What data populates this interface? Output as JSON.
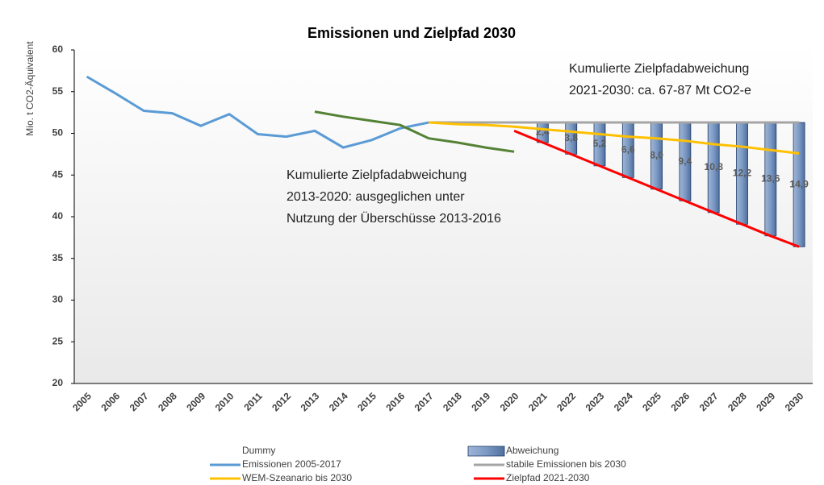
{
  "chart_data": {
    "type": "line",
    "title": "Emissionen und Zielpfad 2030",
    "y_label": "Mio. t CO2-Äquivalent",
    "categories": [
      "2005",
      "2006",
      "2007",
      "2008",
      "2009",
      "2010",
      "2011",
      "2012",
      "2013",
      "2014",
      "2015",
      "2016",
      "2017",
      "2018",
      "2019",
      "2020",
      "2021",
      "2022",
      "2023",
      "2024",
      "2025",
      "2026",
      "2027",
      "2028",
      "2029",
      "2030"
    ],
    "ylim": [
      20,
      60
    ],
    "yticks": [
      20,
      25,
      30,
      35,
      40,
      45,
      50,
      55,
      60
    ],
    "annotations": [
      {
        "lines": [
          "Kumulierte Zielpfadabweichung",
          "2021-2030: ca. 67-87 Mt CO2-e"
        ]
      },
      {
        "lines": [
          "Kumulierte Zielpfadabweichung",
          "2013-2020: ausgeglichen unter",
          "Nutzung der Überschüsse 2013-2016"
        ]
      }
    ],
    "series": [
      {
        "name": "Dummy",
        "values": [
          null,
          null,
          null,
          null,
          null,
          null,
          null,
          null,
          null,
          null,
          null,
          null,
          null,
          null,
          null,
          null,
          null,
          null,
          null,
          null,
          null,
          null,
          null,
          null,
          null,
          null
        ]
      },
      {
        "name": "Abweichung",
        "type": "bar",
        "color": "#6f8dbb",
        "values": [
          null,
          null,
          null,
          null,
          null,
          null,
          null,
          null,
          null,
          null,
          null,
          null,
          null,
          null,
          null,
          null,
          2.4,
          3.8,
          5.2,
          6.6,
          8.0,
          9.4,
          10.8,
          12.2,
          13.6,
          14.9
        ],
        "value_labels": [
          null,
          null,
          null,
          null,
          null,
          null,
          null,
          null,
          null,
          null,
          null,
          null,
          null,
          null,
          null,
          null,
          "2,4",
          "3,8",
          "5,2",
          "6,6",
          "8,0",
          "9,4",
          "10,8",
          "12,2",
          "13,6",
          "14,9"
        ]
      },
      {
        "name": "Emissionen 2005-2017",
        "color": "#5b9bd5",
        "values": [
          56.8,
          54.8,
          52.7,
          52.4,
          50.9,
          52.3,
          49.9,
          49.6,
          50.3,
          48.3,
          49.2,
          50.6,
          51.3,
          null,
          null,
          null,
          null,
          null,
          null,
          null,
          null,
          null,
          null,
          null,
          null,
          null
        ]
      },
      {
        "name": "stabile Emissionen bis 2030",
        "color": "#a5a5a5",
        "values": [
          null,
          null,
          null,
          null,
          null,
          null,
          null,
          null,
          null,
          null,
          null,
          null,
          51.3,
          51.3,
          51.3,
          51.3,
          51.3,
          51.3,
          51.3,
          51.3,
          51.3,
          51.3,
          51.3,
          51.3,
          51.3,
          51.3
        ]
      },
      {
        "name": "WEM-Szeanario bis 2030",
        "color": "#ffc000",
        "values": [
          null,
          null,
          null,
          null,
          null,
          null,
          null,
          null,
          null,
          null,
          null,
          null,
          51.3,
          51.1,
          51.0,
          50.8,
          50.5,
          50.2,
          49.9,
          49.6,
          49.4,
          49.1,
          48.7,
          48.4,
          48.0,
          47.6
        ]
      },
      {
        "name": "Zielpfad 2021-2030",
        "color": "#ff0000",
        "values": [
          null,
          null,
          null,
          null,
          null,
          null,
          null,
          null,
          null,
          null,
          null,
          null,
          null,
          null,
          null,
          50.3,
          48.9,
          47.5,
          46.1,
          44.7,
          43.3,
          41.9,
          40.5,
          39.1,
          37.7,
          36.4
        ]
      },
      {
        "color": "#548235",
        "values": [
          null,
          null,
          null,
          null,
          null,
          null,
          null,
          null,
          52.6,
          52.0,
          51.5,
          51.0,
          49.4,
          48.9,
          48.3,
          47.8,
          null,
          null,
          null,
          null,
          null,
          null,
          null,
          null,
          null,
          null
        ]
      }
    ]
  }
}
